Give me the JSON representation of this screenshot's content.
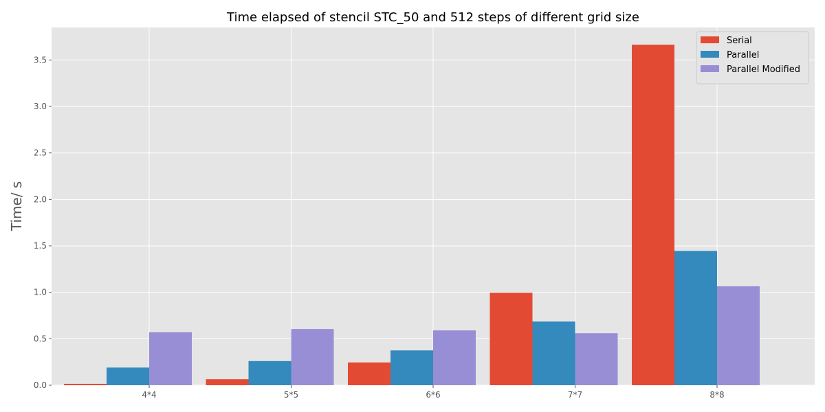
{
  "chart_data": {
    "type": "bar",
    "title": "Time elapsed of stencil STC_50 and 512 steps of different grid size",
    "xlabel": "",
    "ylabel": "Time/ s",
    "categories": [
      "4*4",
      "5*5",
      "6*6",
      "7*7",
      "8*8"
    ],
    "series": [
      {
        "name": "Serial",
        "color": "#E24A33",
        "values": [
          0.015,
          0.065,
          0.245,
          0.995,
          3.665
        ]
      },
      {
        "name": "Parallel",
        "color": "#348ABD",
        "values": [
          0.19,
          0.26,
          0.375,
          0.685,
          1.445
        ]
      },
      {
        "name": "Parallel Modified",
        "color": "#988ED5",
        "values": [
          0.57,
          0.605,
          0.59,
          0.56,
          1.065
        ]
      }
    ],
    "ylim": [
      0,
      3.85
    ],
    "yticks": [
      0.0,
      0.5,
      1.0,
      1.5,
      2.0,
      2.5,
      3.0,
      3.5
    ],
    "ytick_labels": [
      "0.0",
      "0.5",
      "1.0",
      "1.5",
      "2.0",
      "2.5",
      "3.0",
      "3.5"
    ],
    "grid": true,
    "legend_position": "top-right"
  }
}
